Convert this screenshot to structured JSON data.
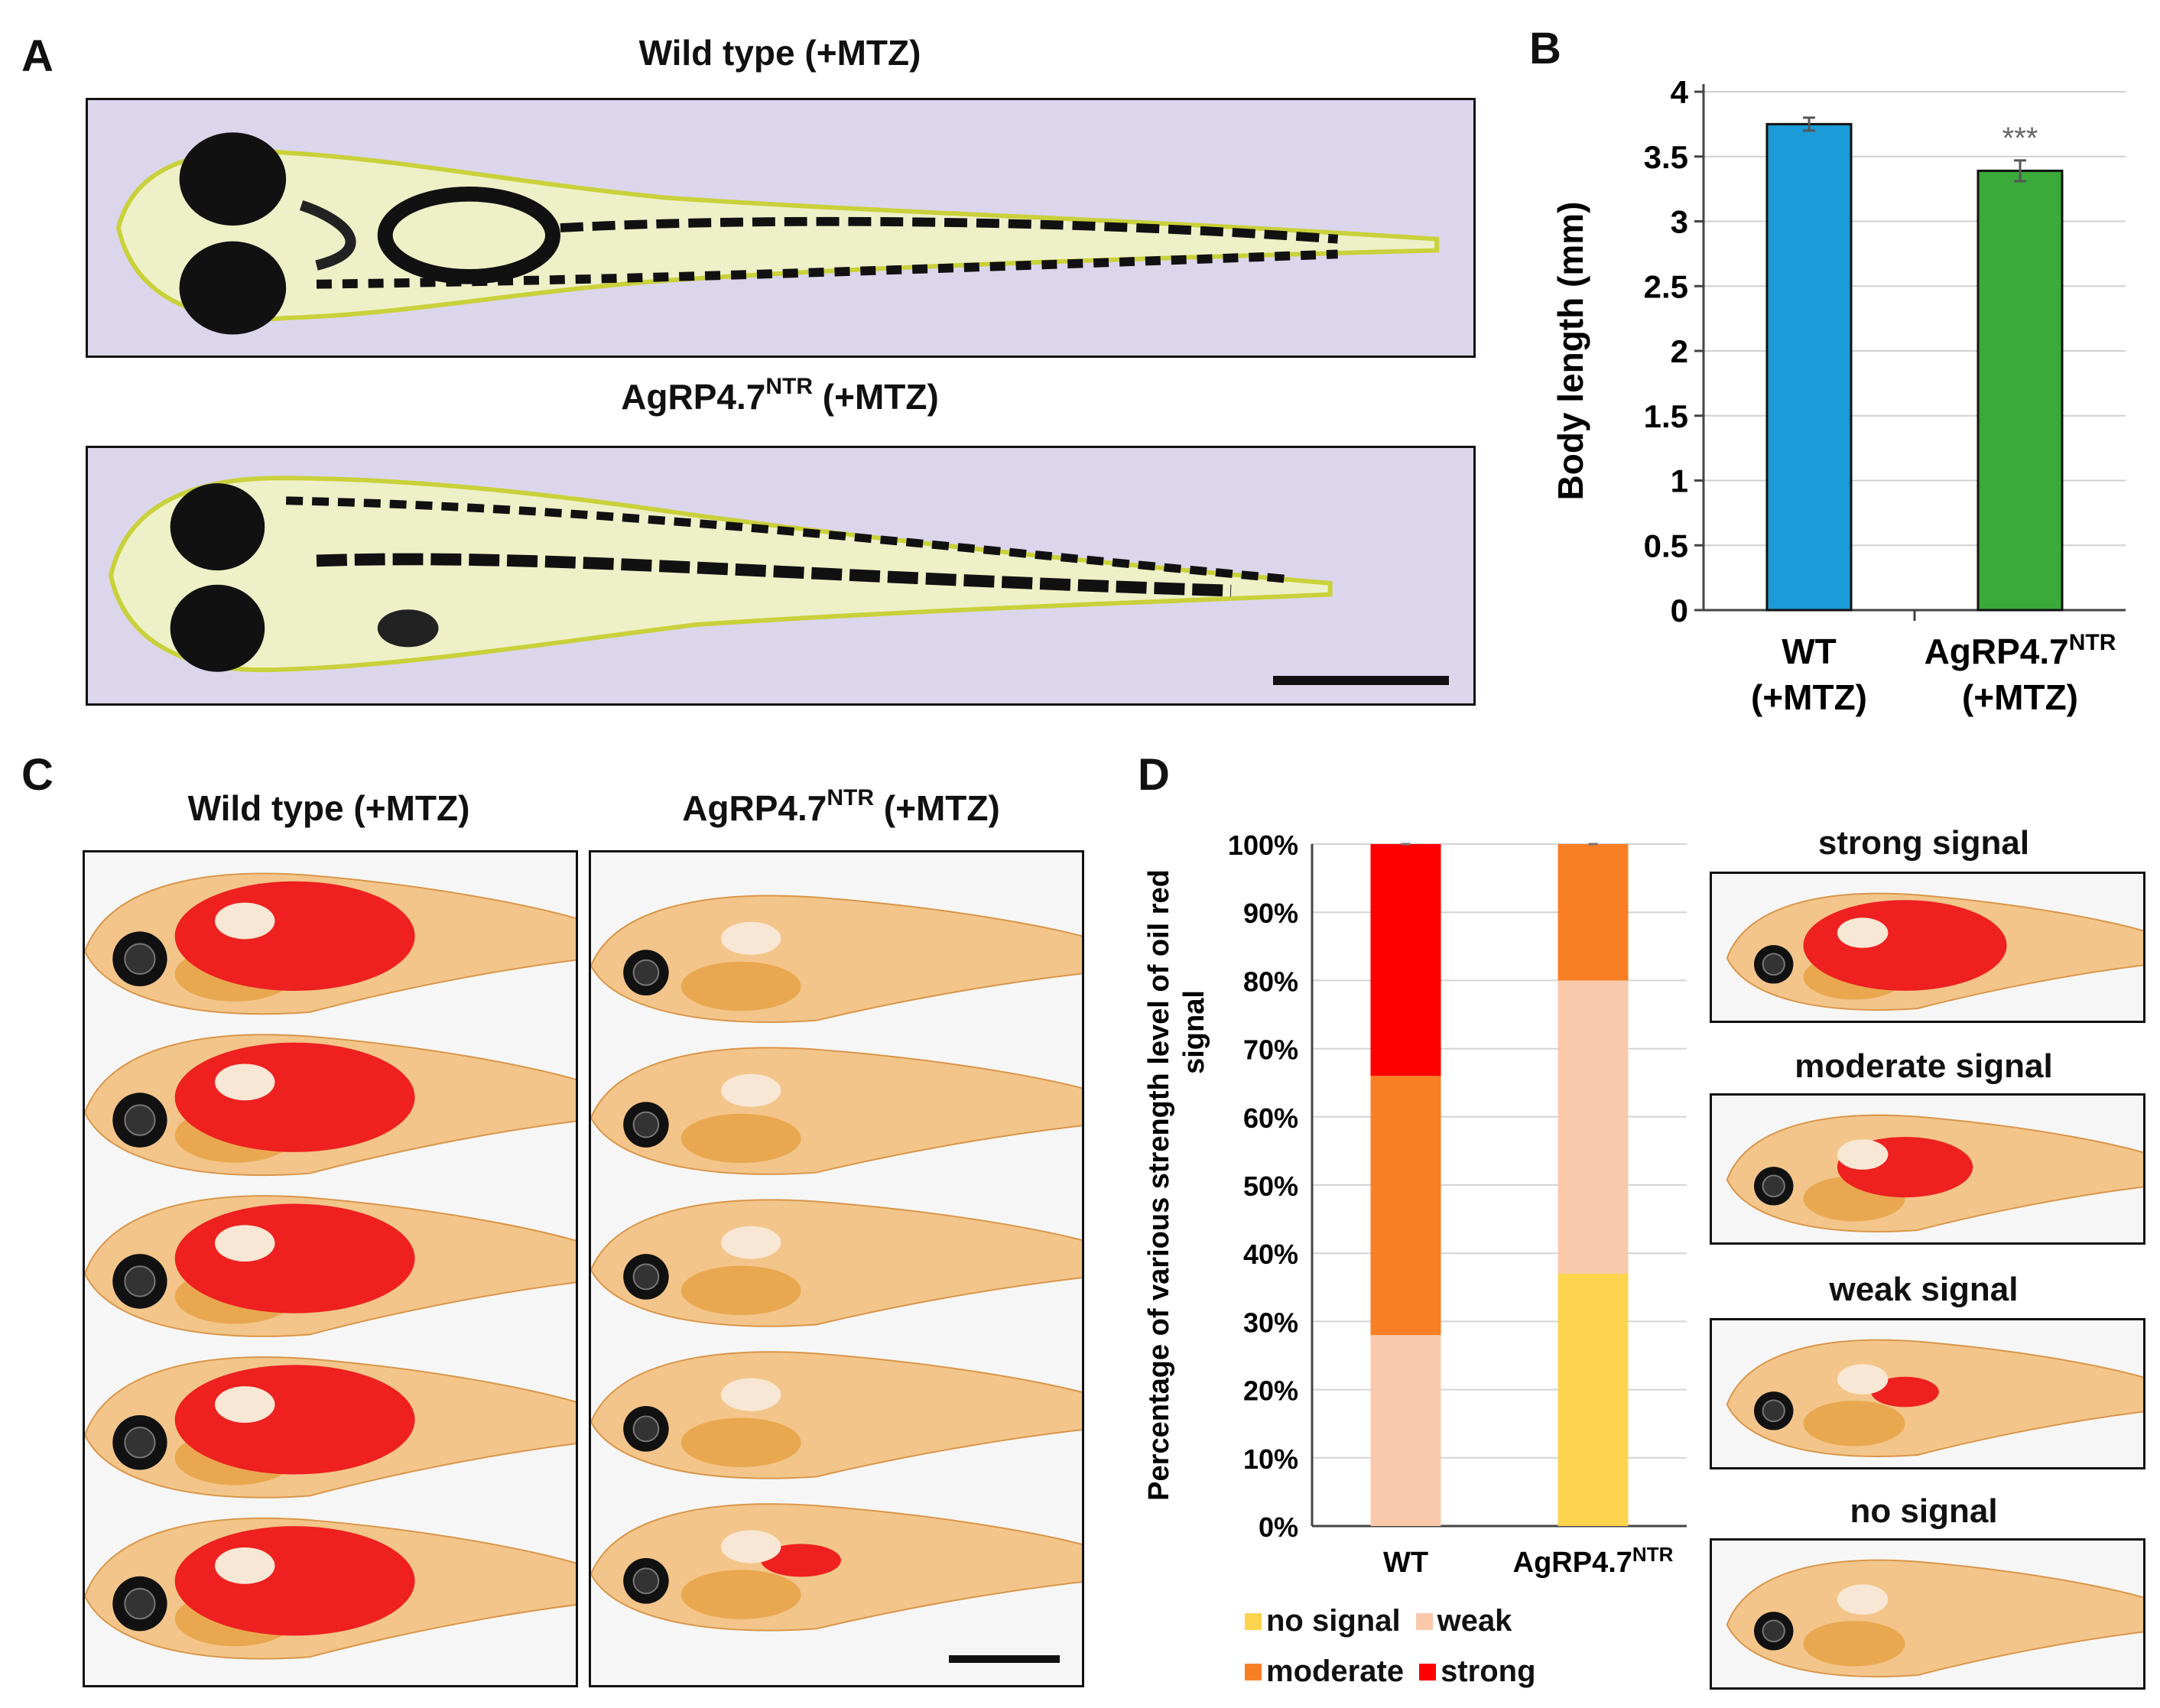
{
  "panels": {
    "a": {
      "letter": "A",
      "top_caption": "Wild type (+MTZ)",
      "bottom_caption_main": "AgRP4.7",
      "bottom_caption_sup": "NTR",
      "bottom_caption_tail": " (+MTZ)"
    },
    "b": {
      "letter": "B",
      "significance": "***"
    },
    "c": {
      "letter": "C",
      "left_caption": "Wild type (+MTZ)",
      "right_caption_main": "AgRP4.7",
      "right_caption_sup": "NTR",
      "right_caption_tail": " (+MTZ)"
    },
    "d": {
      "letter": "D",
      "thumbnails": [
        {
          "title": "strong signal"
        },
        {
          "title": "moderate signal"
        },
        {
          "title": "weak signal"
        },
        {
          "title": "no signal"
        }
      ]
    }
  },
  "chart_data": [
    {
      "type": "bar",
      "panel": "B",
      "categories": [
        {
          "line1": "WT",
          "line2": "(+MTZ)",
          "sup": ""
        },
        {
          "line1": "AgRP4.7",
          "line2": "(+MTZ)",
          "sup": "NTR"
        }
      ],
      "values": [
        3.75,
        3.39
      ],
      "errors": [
        0.05,
        0.08
      ],
      "colors": [
        "#1b9bd7",
        "#3aaa3a"
      ],
      "ylabel": "Body length (mm)",
      "ylim": [
        0,
        4
      ],
      "yticks": [
        "0",
        "0.5",
        "1",
        "1.5",
        "2",
        "2.5",
        "3",
        "3.5",
        "4"
      ],
      "grid": true
    },
    {
      "type": "bar",
      "stacked": true,
      "panel": "D",
      "categories": [
        {
          "label": "WT",
          "sup": ""
        },
        {
          "label": "AgRP4.7",
          "sup": "NTR"
        }
      ],
      "series": [
        {
          "name": "no signal",
          "color": "#fdd44e",
          "values": [
            0,
            37
          ]
        },
        {
          "name": "weak",
          "color": "#fac9ab",
          "values": [
            28,
            43
          ]
        },
        {
          "name": "moderate",
          "color": "#f97f25",
          "values": [
            38,
            20
          ]
        },
        {
          "name": "strong",
          "color": "#ff0000",
          "values": [
            34,
            0
          ]
        }
      ],
      "ylabel_line1": "Percentage of various strength level of oil red",
      "ylabel_line2": "signal",
      "ylim": [
        0,
        100
      ],
      "yticks": [
        "0%",
        "10%",
        "20%",
        "30%",
        "40%",
        "50%",
        "60%",
        "70%",
        "80%",
        "90%",
        "100%"
      ],
      "legend": [
        [
          {
            "name": "no signal",
            "color": "#fdd44e"
          },
          {
            "name": "weak",
            "color": "#fac9ab"
          }
        ],
        [
          {
            "name": "moderate",
            "color": "#f97f25"
          },
          {
            "name": "strong",
            "color": "#ff0000"
          }
        ]
      ],
      "grid": true
    }
  ]
}
